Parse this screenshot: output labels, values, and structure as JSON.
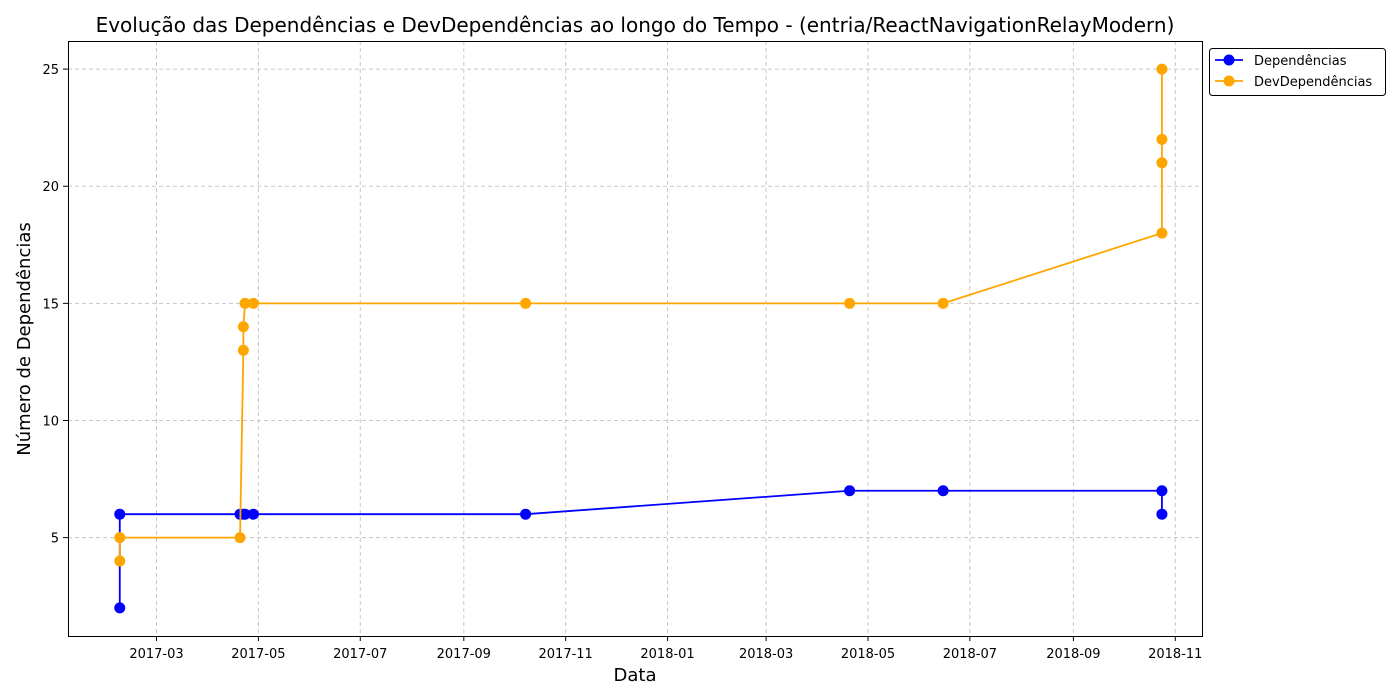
{
  "chart_data": {
    "type": "line",
    "title": "Evolução das Dependências e DevDependências ao longo do Tempo - (entria/ReactNavigationRelayModern)",
    "xlabel": "Data",
    "ylabel": "Número de Dependências",
    "x_axis_type": "date",
    "xlim": [
      "2017-01-07",
      "2018-11-17"
    ],
    "ylim": [
      0.8,
      26.2
    ],
    "x_ticks": [
      "2017-03-01",
      "2017-05-01",
      "2017-07-01",
      "2017-09-01",
      "2017-11-01",
      "2018-01-01",
      "2018-03-01",
      "2018-05-01",
      "2018-07-01",
      "2018-09-01",
      "2018-11-01"
    ],
    "x_tick_labels": [
      "2017-03",
      "2017-05",
      "2017-07",
      "2017-09",
      "2017-11",
      "2018-01",
      "2018-03",
      "2018-05",
      "2018-07",
      "2018-09",
      "2018-11"
    ],
    "y_ticks": [
      5,
      10,
      15,
      20,
      25
    ],
    "y_tick_labels": [
      "5",
      "10",
      "15",
      "20",
      "25"
    ],
    "grid": true,
    "legend_position": "outside-top-right",
    "series": [
      {
        "name": "Dependências",
        "color": "#0000ff",
        "marker": "circle",
        "points": [
          {
            "x": "2017-02-07",
            "y": 2
          },
          {
            "x": "2017-02-07",
            "y": 6
          },
          {
            "x": "2017-04-20",
            "y": 6
          },
          {
            "x": "2017-04-22",
            "y": 6
          },
          {
            "x": "2017-04-23",
            "y": 6
          },
          {
            "x": "2017-04-28",
            "y": 6
          },
          {
            "x": "2017-10-08",
            "y": 6
          },
          {
            "x": "2018-04-20",
            "y": 7
          },
          {
            "x": "2018-06-15",
            "y": 7
          },
          {
            "x": "2018-10-24",
            "y": 7
          },
          {
            "x": "2018-10-24",
            "y": 6
          }
        ]
      },
      {
        "name": "DevDependências",
        "color": "#ffa500",
        "marker": "circle",
        "points": [
          {
            "x": "2017-02-07",
            "y": 4
          },
          {
            "x": "2017-02-07",
            "y": 5
          },
          {
            "x": "2017-04-20",
            "y": 5
          },
          {
            "x": "2017-04-22",
            "y": 13
          },
          {
            "x": "2017-04-22",
            "y": 14
          },
          {
            "x": "2017-04-23",
            "y": 15
          },
          {
            "x": "2017-04-28",
            "y": 15
          },
          {
            "x": "2017-10-08",
            "y": 15
          },
          {
            "x": "2018-04-20",
            "y": 15
          },
          {
            "x": "2018-06-15",
            "y": 15
          },
          {
            "x": "2018-10-24",
            "y": 18
          },
          {
            "x": "2018-10-24",
            "y": 21
          },
          {
            "x": "2018-10-24",
            "y": 22
          },
          {
            "x": "2018-10-24",
            "y": 25
          }
        ]
      }
    ]
  }
}
